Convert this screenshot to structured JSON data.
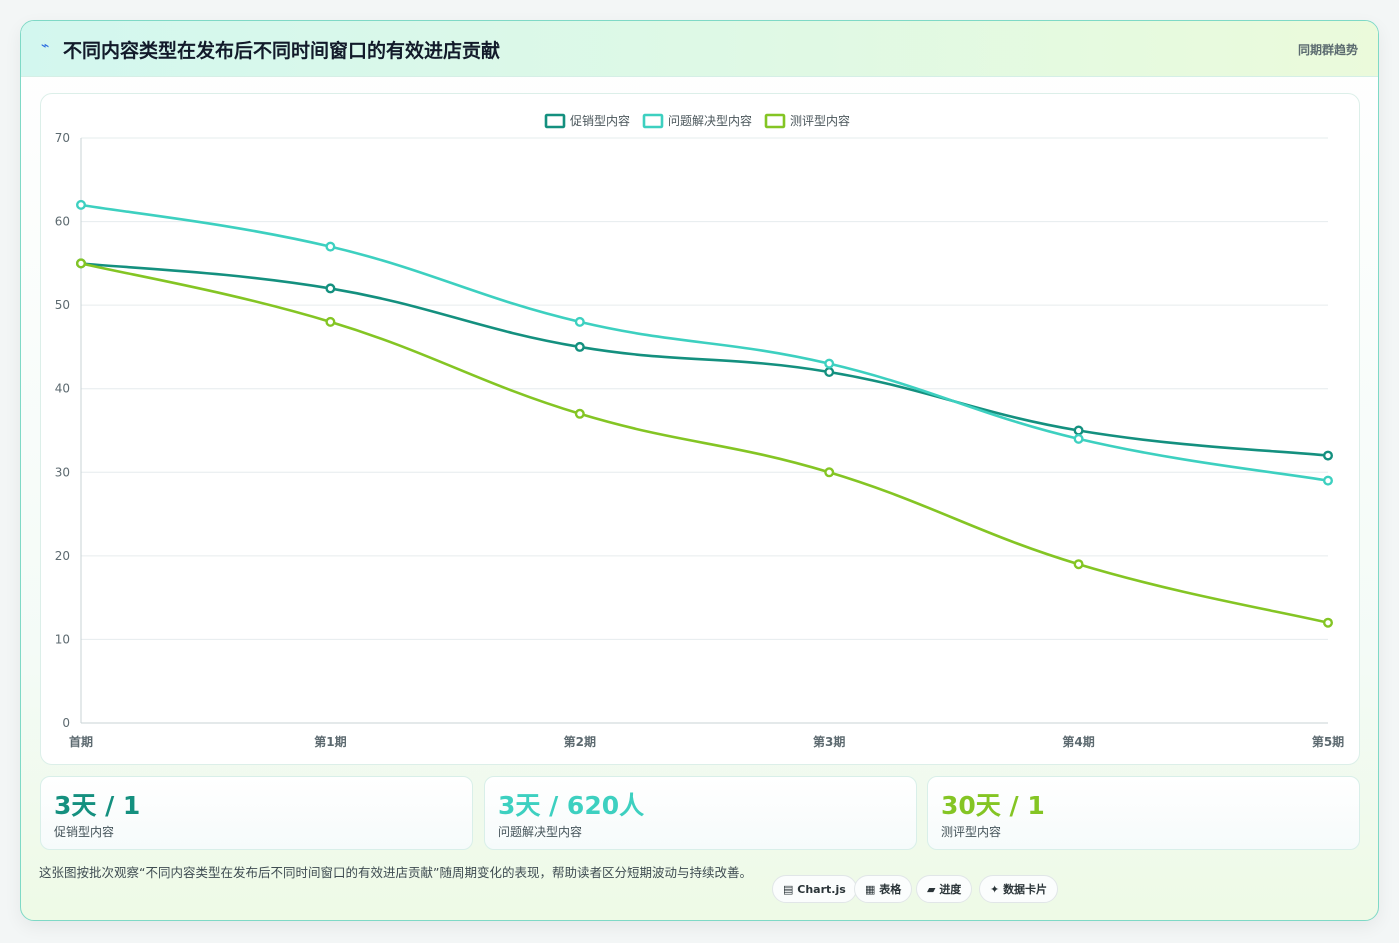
{
  "header": {
    "icon": "lightning-icon",
    "title": "不同内容类型在发布后不同时间窗口的有效进店贡献",
    "tag": "同期群趋势"
  },
  "chart_data": {
    "type": "line",
    "categories": [
      "首期",
      "第1期",
      "第2期",
      "第3期",
      "第4期",
      "第5期"
    ],
    "series": [
      {
        "name": "促销型内容",
        "color": "#14907f",
        "values": [
          55,
          52,
          45,
          42,
          35,
          32
        ]
      },
      {
        "name": "问题解决型内容",
        "color": "#3dd0c0",
        "values": [
          62,
          57,
          48,
          43,
          34,
          29
        ]
      },
      {
        "name": "测评型内容",
        "color": "#84c524",
        "values": [
          55,
          48,
          37,
          30,
          19,
          12
        ]
      }
    ],
    "ylim": [
      0,
      70
    ],
    "yticks": [
      0,
      10,
      20,
      30,
      40,
      50,
      60,
      70
    ],
    "grid": true,
    "legend": "top-center"
  },
  "stats": [
    {
      "value": "3天 / 1",
      "label": "促销型内容",
      "color": "#14907f"
    },
    {
      "value": "3天 / 620人",
      "label": "问题解决型内容",
      "color": "#3dd0c0"
    },
    {
      "value": "30天 / 1",
      "label": "测评型内容",
      "color": "#84c524"
    }
  ],
  "note": "这张图按批次观察“不同内容类型在发布后不同时间窗口的有效进店贡献”随周期变化的表现，帮助读者区分短期波动与持续改善。",
  "pills": [
    {
      "icon": "grid-icon",
      "glyph": "▤",
      "label": "Chart.js"
    },
    {
      "icon": "table-icon",
      "glyph": "▦",
      "label": "表格"
    },
    {
      "icon": "progress-icon",
      "glyph": "▰",
      "label": "进度"
    },
    {
      "icon": "sparkle-icon",
      "glyph": "✦",
      "label": "数据卡片"
    }
  ]
}
